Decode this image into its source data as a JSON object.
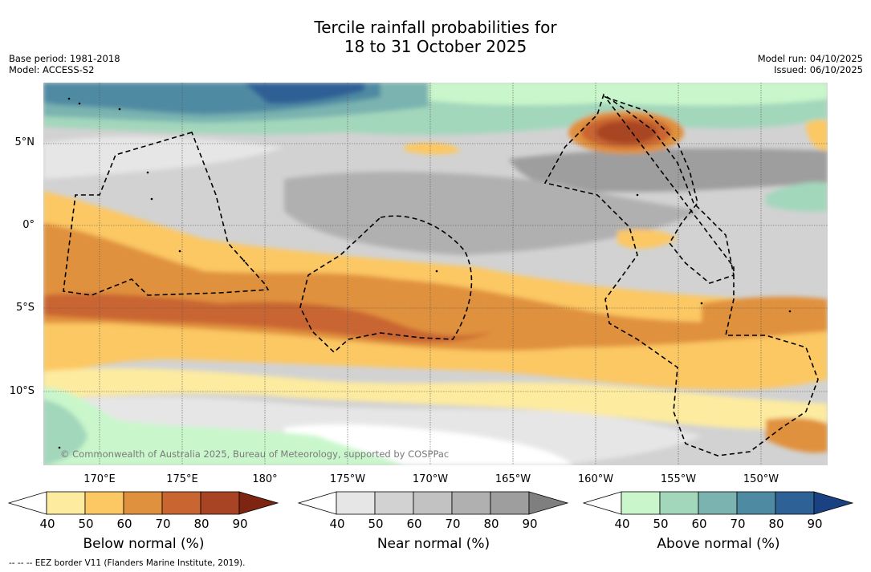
{
  "title": {
    "line1": "Tercile rainfall probabilities for",
    "line2": "18 to 31 October 2025"
  },
  "meta_left": {
    "base_period": "Base period: 1981-2018",
    "model": "Model: ACCESS-S2"
  },
  "meta_right": {
    "model_run": "Model run: 04/10/2025",
    "issued": "Issued: 06/10/2025"
  },
  "lat_labels": [
    "5°N",
    "0°",
    "5°S",
    "10°S"
  ],
  "lon_labels": [
    "170°E",
    "175°E",
    "180°",
    "175°W",
    "170°W",
    "165°W",
    "160°W",
    "155°W",
    "150°W"
  ],
  "copyright": "© Commonwealth of Australia 2025, Bureau of Meteorology, supported by COSPPac",
  "footnote": "--  --  -- EEZ border V11 (Flanders Marine Institute, 2019).",
  "colorbars": [
    {
      "title": "Below normal (%)",
      "ticks": [
        "40",
        "50",
        "60",
        "70",
        "80",
        "90"
      ],
      "colors": [
        "#ffffff",
        "#fdeba0",
        "#fcc863",
        "#e0913d",
        "#c96531",
        "#a84423",
        "#7d2510"
      ]
    },
    {
      "title": "Near normal (%)",
      "ticks": [
        "40",
        "50",
        "60",
        "70",
        "80",
        "90"
      ],
      "colors": [
        "#ffffff",
        "#e6e6e6",
        "#d2d2d2",
        "#c2c2c2",
        "#b0b0b0",
        "#9e9e9e",
        "#7f7f7f"
      ]
    },
    {
      "title": "Above normal (%)",
      "ticks": [
        "40",
        "50",
        "60",
        "70",
        "80",
        "90"
      ],
      "colors": [
        "#ffffff",
        "#c9f7cb",
        "#a3d7bc",
        "#7ab3b0",
        "#4f8aa3",
        "#2e6196",
        "#1a4282"
      ]
    }
  ],
  "colors": {
    "sea_white": "#ffffff",
    "border": "#000000"
  }
}
